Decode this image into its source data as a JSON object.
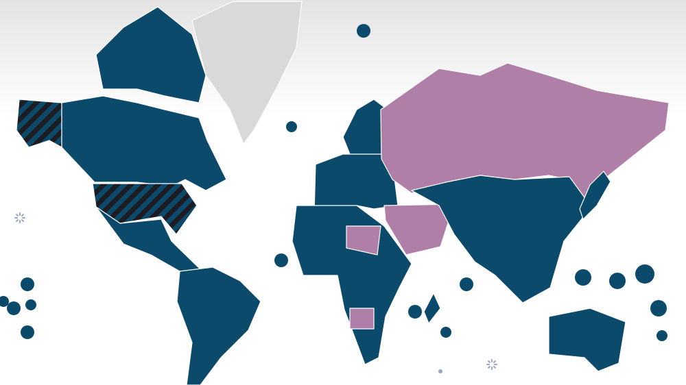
{
  "map": {
    "colors": {
      "base": "#0c4a6b",
      "highlight": "#b07fa8",
      "no_data": "#d9d9d9",
      "stripe": "#1c1c22",
      "border": "#ffffff",
      "background_top": "#e6e6e6",
      "background": "#ffffff",
      "spinner": "#9aa6c8"
    },
    "icons": [
      "loading-spinner-icon",
      "loading-spinner-icon"
    ]
  }
}
